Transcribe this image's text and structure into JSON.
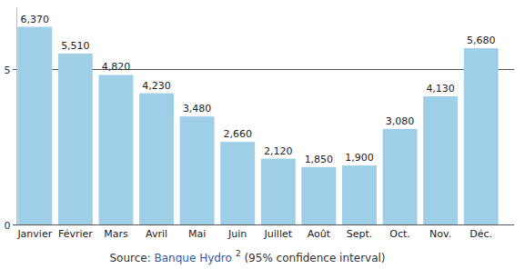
{
  "chart_data": {
    "type": "bar",
    "categories": [
      "Janvier",
      "Février",
      "Mars",
      "Avril",
      "Mai",
      "Juin",
      "Juillet",
      "Août",
      "Sept.",
      "Oct.",
      "Nov.",
      "Déc."
    ],
    "values": [
      6.37,
      5.51,
      4.82,
      4.23,
      3.48,
      2.66,
      2.12,
      1.85,
      1.9,
      3.08,
      4.13,
      5.68
    ],
    "value_labels": [
      "6,370",
      "5,510",
      "4,820",
      "4,230",
      "3,480",
      "2,660",
      "2,120",
      "1,850",
      "1,900",
      "3,080",
      "4,130",
      "5,680"
    ],
    "data_labels": true,
    "color": "#9ecfe6",
    "ylim": [
      0,
      7
    ],
    "yticks": [
      0,
      5
    ],
    "grid": true,
    "source": {
      "prefix": "Source: ",
      "link": "Banque Hydro",
      "sup": "2",
      "suffix": " (95% confidence interval)"
    }
  }
}
